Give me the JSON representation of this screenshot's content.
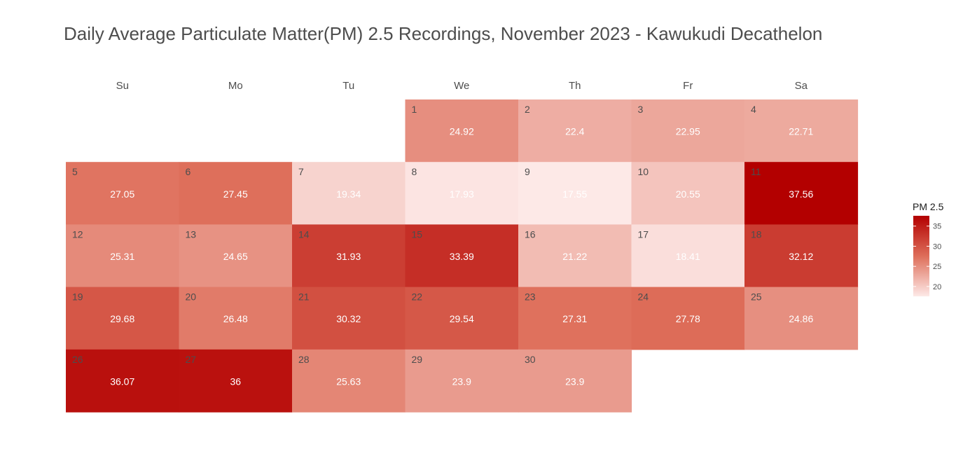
{
  "chart_data": {
    "type": "heatmap",
    "title": "Daily Average Particulate Matter(PM) 2.5 Recordings, November 2023 - Kawukudi Decathelon",
    "weekdays": [
      "Su",
      "Mo",
      "Tu",
      "We",
      "Th",
      "Fr",
      "Sa"
    ],
    "first_weekday_index": 3,
    "days": [
      1,
      2,
      3,
      4,
      5,
      6,
      7,
      8,
      9,
      10,
      11,
      12,
      13,
      14,
      15,
      16,
      17,
      18,
      19,
      20,
      21,
      22,
      23,
      24,
      25,
      26,
      27,
      28,
      29,
      30
    ],
    "values": [
      24.92,
      22.4,
      22.95,
      22.71,
      27.05,
      27.45,
      19.34,
      17.93,
      17.55,
      20.55,
      37.56,
      25.31,
      24.65,
      31.93,
      33.39,
      21.22,
      18.41,
      32.12,
      29.68,
      26.48,
      30.32,
      29.54,
      27.31,
      27.78,
      24.86,
      36.07,
      36,
      25.63,
      23.9,
      23.9
    ],
    "value_labels": [
      "24.92",
      "22.4",
      "22.95",
      "22.71",
      "27.05",
      "27.45",
      "19.34",
      "17.93",
      "17.55",
      "20.55",
      "37.56",
      "25.31",
      "24.65",
      "31.93",
      "33.39",
      "21.22",
      "18.41",
      "32.12",
      "29.68",
      "26.48",
      "30.32",
      "29.54",
      "27.31",
      "27.78",
      "24.86",
      "36.07",
      "36",
      "25.63",
      "23.9",
      "23.9"
    ],
    "legend": {
      "title": "PM 2.5",
      "ticks": [
        20,
        25,
        30,
        35
      ],
      "range": [
        17.55,
        37.56
      ],
      "low_color": "#fde9e7",
      "high_color": "#b30000",
      "placement": "right"
    }
  }
}
